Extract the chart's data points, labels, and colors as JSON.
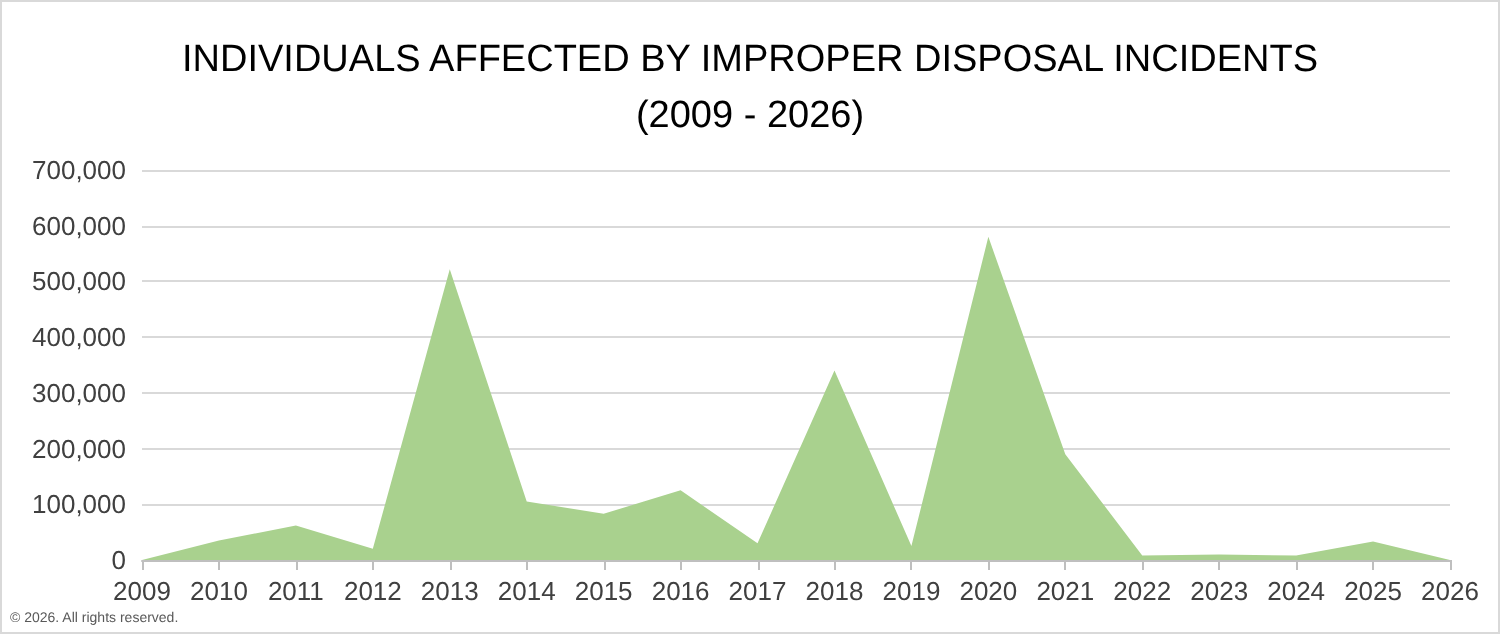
{
  "chart_data": {
    "type": "area",
    "title": "INDIVIDUALS AFFECTED BY IMPROPER DISPOSAL INCIDENTS\n(2009 - 2026)",
    "categories": [
      "2009",
      "2010",
      "2011",
      "2012",
      "2013",
      "2014",
      "2015",
      "2016",
      "2017",
      "2018",
      "2019",
      "2020",
      "2021",
      "2022",
      "2023",
      "2024",
      "2025",
      "2026"
    ],
    "values": [
      0,
      35000,
      62000,
      20000,
      522000,
      105000,
      83000,
      125000,
      30000,
      340000,
      25000,
      580000,
      190000,
      8000,
      10000,
      8000,
      33000,
      0
    ],
    "color": "#a9d18e",
    "ylim": [
      0,
      700000
    ],
    "yticks": [
      0,
      {
        "value": 100000,
        "label": "100,000"
      },
      {
        "value": 200000,
        "label": "200,000"
      },
      {
        "value": 300000,
        "label": "300,000"
      },
      {
        "value": 400000,
        "label": "400,000"
      },
      {
        "value": 500000,
        "label": "500,000"
      },
      {
        "value": 600000,
        "label": "600,000"
      },
      {
        "value": 700000,
        "label": "700,000"
      }
    ],
    "grid": "y",
    "annotations": [
      "© 2026. All rights reserved."
    ]
  }
}
